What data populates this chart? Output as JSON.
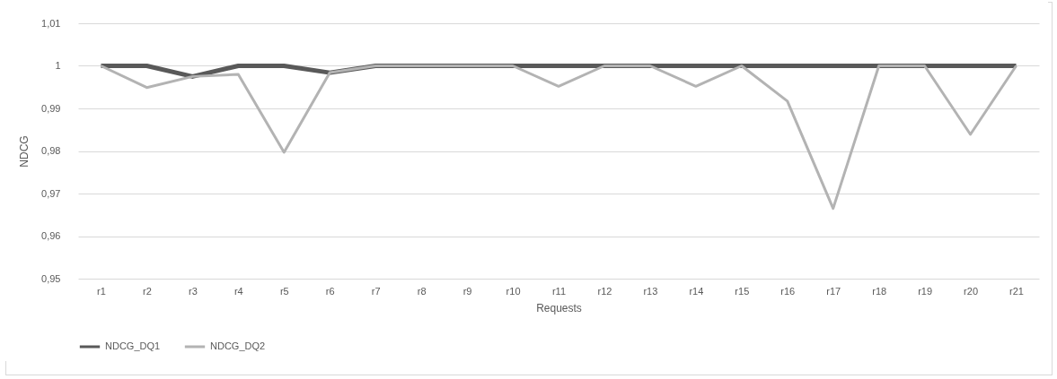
{
  "chart_data": {
    "type": "line",
    "xlabel": "Requests",
    "ylabel": "NDCG",
    "categories": [
      "r1",
      "r2",
      "r3",
      "r4",
      "r5",
      "r6",
      "r7",
      "r8",
      "r9",
      "r10",
      "r11",
      "r12",
      "r13",
      "r14",
      "r15",
      "r16",
      "r17",
      "r18",
      "r19",
      "r20",
      "r21"
    ],
    "series": [
      {
        "name": "NDCG_DQ1",
        "color": "#595959",
        "values": [
          1,
          1,
          0.9975,
          1,
          1,
          0.9984,
          1,
          1,
          1,
          1,
          1,
          1,
          1,
          1,
          1,
          1,
          1,
          1,
          1,
          1,
          1
        ]
      },
      {
        "name": "NDCG_DQ2",
        "color": "#b3b3b3",
        "values": [
          1,
          0.9949,
          0.9975,
          0.998,
          0.9797,
          0.9984,
          1,
          1,
          1,
          1,
          0.9952,
          1,
          1,
          0.9952,
          1,
          0.9917,
          0.9665,
          1,
          1,
          0.9839,
          1
        ]
      }
    ],
    "ylim": [
      0.95,
      1.01
    ],
    "yticks": [
      {
        "value": 0.95,
        "label": "0,95"
      },
      {
        "value": 0.96,
        "label": "0,96"
      },
      {
        "value": 0.97,
        "label": "0,97"
      },
      {
        "value": 0.98,
        "label": "0,98"
      },
      {
        "value": 0.99,
        "label": "0,99"
      },
      {
        "value": 1,
        "label": "1"
      },
      {
        "value": 1.01,
        "label": "1,01"
      }
    ],
    "grid": "y",
    "legend": "bottom",
    "marker": "none",
    "line_style": "solid"
  }
}
